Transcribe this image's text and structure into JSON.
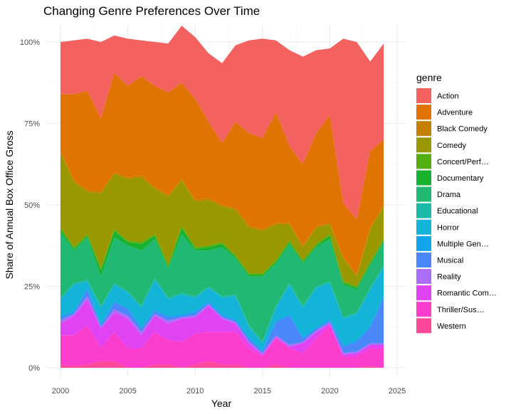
{
  "chart_data": {
    "type": "area",
    "title": "Changing Genre Preferences Over Time",
    "xlabel": "Year",
    "ylabel": "Share of Annual Box Office Gross",
    "x_ticks": [
      "2000",
      "2005",
      "2010",
      "2015",
      "2020",
      "2025"
    ],
    "y_ticks": [
      "0%",
      "25%",
      "50%",
      "75%",
      "100%"
    ],
    "xlim": [
      1999,
      2025
    ],
    "ylim": [
      0,
      1.0
    ],
    "stacked": true,
    "grid": true,
    "legend_title": "genre",
    "legend_position": "right",
    "x": [
      2000,
      2001,
      2002,
      2003,
      2004,
      2005,
      2006,
      2007,
      2008,
      2009,
      2010,
      2011,
      2012,
      2013,
      2014,
      2015,
      2016,
      2017,
      2018,
      2019,
      2020,
      2021,
      2022,
      2023,
      2024
    ],
    "series": [
      {
        "name": "Western",
        "color": "#FF4899",
        "values": [
          0.01,
          0.005,
          0.01,
          0.02,
          0.02,
          0,
          0,
          0.01,
          0.01,
          0,
          0.01,
          0.02,
          0.01,
          0.01,
          0,
          0,
          0.01,
          0,
          0,
          0,
          0,
          0,
          0,
          0.005,
          0
        ]
      },
      {
        "name": "Thriller/Suspense",
        "color": "#FB3DCE",
        "values": [
          0.09,
          0.095,
          0.12,
          0.04,
          0.09,
          0.06,
          0.06,
          0.1,
          0.075,
          0.08,
          0.095,
          0.09,
          0.1,
          0.1,
          0.06,
          0.035,
          0.08,
          0.06,
          0.045,
          0.09,
          0.13,
          0.035,
          0.035,
          0.055,
          0.06
        ]
      },
      {
        "name": "Romantic Comedy",
        "color": "#E043F2",
        "values": [
          0.035,
          0.06,
          0.08,
          0.06,
          0.06,
          0.09,
          0.04,
          0.05,
          0.05,
          0.07,
          0.05,
          0.08,
          0.04,
          0.025,
          0.015,
          0.005,
          0.005,
          0.005,
          0.03,
          0.02,
          0.005,
          0.005,
          0.01,
          0.01,
          0.01
        ]
      },
      {
        "name": "Reality",
        "color": "#AD6DFB",
        "values": [
          0.01,
          0.005,
          0.01,
          0.005,
          0.01,
          0.01,
          0.01,
          0.005,
          0.01,
          0.005,
          0.005,
          0.005,
          0.005,
          0.005,
          0.005,
          0.005,
          0.005,
          0.005,
          0.005,
          0.005,
          0.005,
          0.005,
          0.005,
          0.005,
          0.005
        ]
      },
      {
        "name": "Musical",
        "color": "#4A88FA",
        "values": [
          0.01,
          0.005,
          0.02,
          0.005,
          0.02,
          0.02,
          0.01,
          0.01,
          0.01,
          0.005,
          0.01,
          0.005,
          0.005,
          0.005,
          0.01,
          0.005,
          0.04,
          0.09,
          0.01,
          0.005,
          0.005,
          0.02,
          0.03,
          0.05,
          0.14
        ]
      },
      {
        "name": "Multiple Genres",
        "color": "#10A5EA",
        "values": [
          0.005,
          0.005,
          0.005,
          0.005,
          0.005,
          0.005,
          0.005,
          0.005,
          0.005,
          0.005,
          0.005,
          0.005,
          0.005,
          0.005,
          0.005,
          0.005,
          0.005,
          0.005,
          0.005,
          0.005,
          0.005,
          0.005,
          0.005,
          0.005,
          0.005
        ]
      },
      {
        "name": "Horror",
        "color": "#13B4D7",
        "values": [
          0.05,
          0.08,
          0.02,
          0.05,
          0.05,
          0.045,
          0.06,
          0.09,
          0.05,
          0.06,
          0.04,
          0.04,
          0.05,
          0.07,
          0.03,
          0.02,
          0.04,
          0.09,
          0.09,
          0.12,
          0.11,
          0.08,
          0.08,
          0.11,
          0.09
        ]
      },
      {
        "name": "Educational",
        "color": "#1CBAA6",
        "values": [
          0.005,
          0.005,
          0.005,
          0.005,
          0.005,
          0.005,
          0.005,
          0.005,
          0.005,
          0.005,
          0.005,
          0.005,
          0.005,
          0.005,
          0.005,
          0.005,
          0.005,
          0.005,
          0.005,
          0.005,
          0.005,
          0.005,
          0.005,
          0.005,
          0.005
        ]
      },
      {
        "name": "Drama",
        "color": "#20B873",
        "values": [
          0.2,
          0.1,
          0.13,
          0.09,
          0.14,
          0.14,
          0.17,
          0.12,
          0.09,
          0.18,
          0.14,
          0.11,
          0.15,
          0.11,
          0.15,
          0.2,
          0.13,
          0.12,
          0.13,
          0.12,
          0.13,
          0.1,
          0.07,
          0.07,
          0.07
        ]
      },
      {
        "name": "Documentary",
        "color": "#19B230",
        "values": [
          0.01,
          0.005,
          0.005,
          0.02,
          0.02,
          0.01,
          0.02,
          0.01,
          0.005,
          0.02,
          0.005,
          0.01,
          0.01,
          0.005,
          0.005,
          0.005,
          0.005,
          0.005,
          0.005,
          0.005,
          0.01,
          0.005,
          0.005,
          0.005,
          0.005
        ]
      },
      {
        "name": "Concert/Performance",
        "color": "#53AF0F",
        "values": [
          0.005,
          0.005,
          0.005,
          0.005,
          0.005,
          0.005,
          0.005,
          0.005,
          0.005,
          0.005,
          0.005,
          0.005,
          0.005,
          0.005,
          0.005,
          0.005,
          0.005,
          0.005,
          0.005,
          0.005,
          0.005,
          0.005,
          0.005,
          0.005,
          0.005
        ]
      },
      {
        "name": "Comedy",
        "color": "#999800",
        "values": [
          0.23,
          0.2,
          0.13,
          0.23,
          0.17,
          0.19,
          0.2,
          0.14,
          0.21,
          0.14,
          0.14,
          0.14,
          0.11,
          0.14,
          0.14,
          0.13,
          0.11,
          0.05,
          0.04,
          0.05,
          0.03,
          0.07,
          0.03,
          0.1,
          0.1
        ]
      },
      {
        "name": "Black Comedy",
        "color": "#C68000",
        "values": [
          0.005,
          0.005,
          0.005,
          0.005,
          0.005,
          0.005,
          0.005,
          0.005,
          0.005,
          0.005,
          0.005,
          0.005,
          0.005,
          0.005,
          0.005,
          0.005,
          0.005,
          0.005,
          0.005,
          0.005,
          0.005,
          0.005,
          0.005,
          0.005,
          0.005
        ]
      },
      {
        "name": "Adventure",
        "color": "#E07402",
        "values": [
          0.175,
          0.265,
          0.305,
          0.225,
          0.305,
          0.28,
          0.305,
          0.31,
          0.315,
          0.295,
          0.31,
          0.235,
          0.19,
          0.265,
          0.285,
          0.28,
          0.34,
          0.235,
          0.25,
          0.285,
          0.33,
          0.165,
          0.17,
          0.235,
          0.2
        ]
      },
      {
        "name": "Action",
        "color": "#F46260",
        "values": [
          0.16,
          0.165,
          0.16,
          0.235,
          0.115,
          0.145,
          0.11,
          0.135,
          0.15,
          0.175,
          0.19,
          0.21,
          0.245,
          0.235,
          0.285,
          0.305,
          0.22,
          0.295,
          0.33,
          0.255,
          0.205,
          0.505,
          0.545,
          0.275,
          0.295
        ]
      }
    ]
  }
}
